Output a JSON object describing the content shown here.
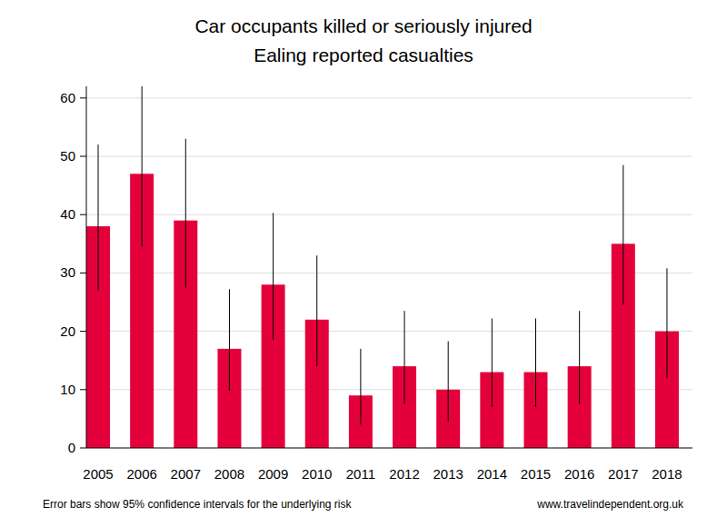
{
  "chart_data": {
    "type": "bar",
    "title": "Car occupants killed or seriously injured",
    "subtitle": "Ealing reported casualties",
    "categories": [
      "2005",
      "2006",
      "2007",
      "2008",
      "2009",
      "2010",
      "2011",
      "2012",
      "2013",
      "2014",
      "2015",
      "2016",
      "2017",
      "2018"
    ],
    "values": [
      38,
      47,
      39,
      17,
      28,
      22,
      9,
      14,
      10,
      13,
      13,
      14,
      35,
      20
    ],
    "error_low": [
      27,
      34.5,
      27.5,
      9.8,
      18.5,
      14,
      4,
      7.5,
      4.5,
      7,
      7,
      7.5,
      24.5,
      12
    ],
    "error_high": [
      52,
      62,
      53,
      27.2,
      40.3,
      33,
      17,
      23.5,
      18.3,
      22.2,
      22.2,
      23.5,
      48.5,
      30.8
    ],
    "color": "#e4003b",
    "ylim": [
      0,
      62
    ],
    "yticks": [
      0,
      10,
      20,
      30,
      40,
      50,
      60
    ],
    "grid": true,
    "note": "Error bars show 95% confidence intervals for the underlying risk",
    "source": "www.travelindependent.org.uk"
  }
}
